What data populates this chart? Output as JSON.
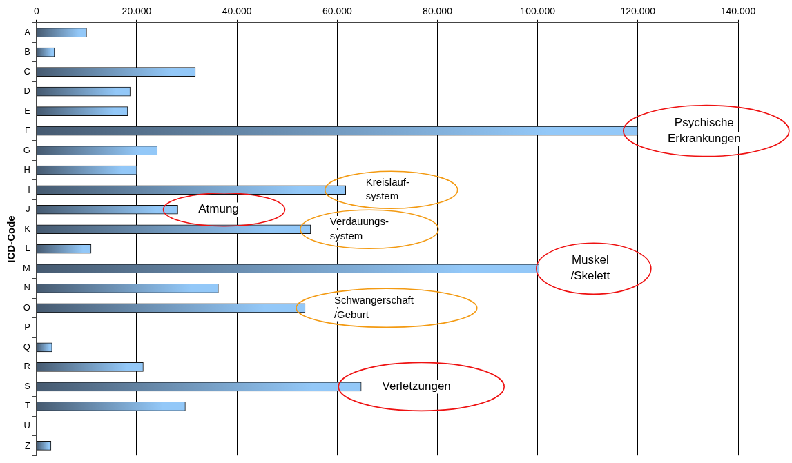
{
  "chart_data": {
    "type": "bar",
    "orientation": "horizontal",
    "ylabel": "ICD-Code",
    "categories": [
      "A",
      "B",
      "C",
      "D",
      "E",
      "F",
      "G",
      "H",
      "I",
      "J",
      "K",
      "L",
      "M",
      "N",
      "O",
      "P",
      "Q",
      "R",
      "S",
      "T",
      "U",
      "Z"
    ],
    "values": [
      10000,
      3600,
      31700,
      18700,
      18200,
      120000,
      24100,
      20000,
      61700,
      28200,
      54700,
      10900,
      100300,
      36300,
      53600,
      0,
      3100,
      21300,
      64800,
      29700,
      0,
      2900
    ],
    "color": "#93c8f8",
    "xlim": [
      0,
      140000
    ],
    "xticks": [
      0,
      {
        "value": 20000,
        "label": "20.000"
      },
      {
        "value": 40000,
        "label": "40.000"
      },
      {
        "value": 60000,
        "label": "60.000"
      },
      {
        "value": 80000,
        "label": "80.000"
      },
      {
        "value": 100000,
        "label": "100.000"
      },
      {
        "value": 120000,
        "label": "120.000"
      },
      {
        "value": 140000,
        "label": "140.000"
      }
    ],
    "grid": "x",
    "legend": false,
    "annotations": [
      {
        "text": "Psychische\nErkrankungen",
        "x": 120000,
        "y": "F"
      },
      {
        "text": "Kreislauf-\nsystem",
        "x": 61700,
        "y": "I"
      },
      {
        "text": "Atmung",
        "x": 28200,
        "y": "J"
      },
      {
        "text": "Verdauungs-\nsystem",
        "x": 54700,
        "y": "K"
      },
      {
        "text": "Muskel\n/Skelett",
        "x": 100300,
        "y": "M"
      },
      {
        "text": "Schwangerschaft\n/Geburt",
        "x": 53600,
        "y": "O"
      },
      {
        "text": "Verletzungen",
        "x": 64800,
        "y": "S"
      }
    ]
  }
}
